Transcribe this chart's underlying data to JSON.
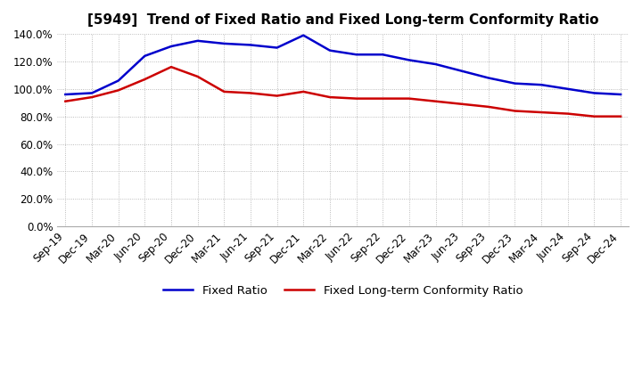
{
  "title": "[5949]  Trend of Fixed Ratio and Fixed Long-term Conformity Ratio",
  "x_labels": [
    "Sep-19",
    "Dec-19",
    "Mar-20",
    "Jun-20",
    "Sep-20",
    "Dec-20",
    "Mar-21",
    "Jun-21",
    "Sep-21",
    "Dec-21",
    "Mar-22",
    "Jun-22",
    "Sep-22",
    "Dec-22",
    "Mar-23",
    "Jun-23",
    "Sep-23",
    "Dec-23",
    "Mar-24",
    "Jun-24",
    "Sep-24",
    "Dec-24"
  ],
  "fixed_ratio": [
    96,
    97,
    106,
    124,
    131,
    135,
    133,
    132,
    130,
    139,
    128,
    125,
    125,
    121,
    118,
    113,
    108,
    104,
    103,
    100,
    97,
    96
  ],
  "fixed_lt_ratio": [
    91,
    94,
    99,
    107,
    116,
    109,
    98,
    97,
    95,
    98,
    94,
    93,
    93,
    93,
    91,
    89,
    87,
    84,
    83,
    82,
    80,
    80
  ],
  "fixed_ratio_color": "#0000cc",
  "fixed_lt_ratio_color": "#cc0000",
  "ylim": [
    0,
    140
  ],
  "yticks": [
    0,
    20,
    40,
    60,
    80,
    100,
    120,
    140
  ],
  "background_color": "#ffffff",
  "grid_color": "#aaaaaa",
  "title_fontsize": 11,
  "axis_fontsize": 8.5,
  "legend_fontsize": 9.5
}
